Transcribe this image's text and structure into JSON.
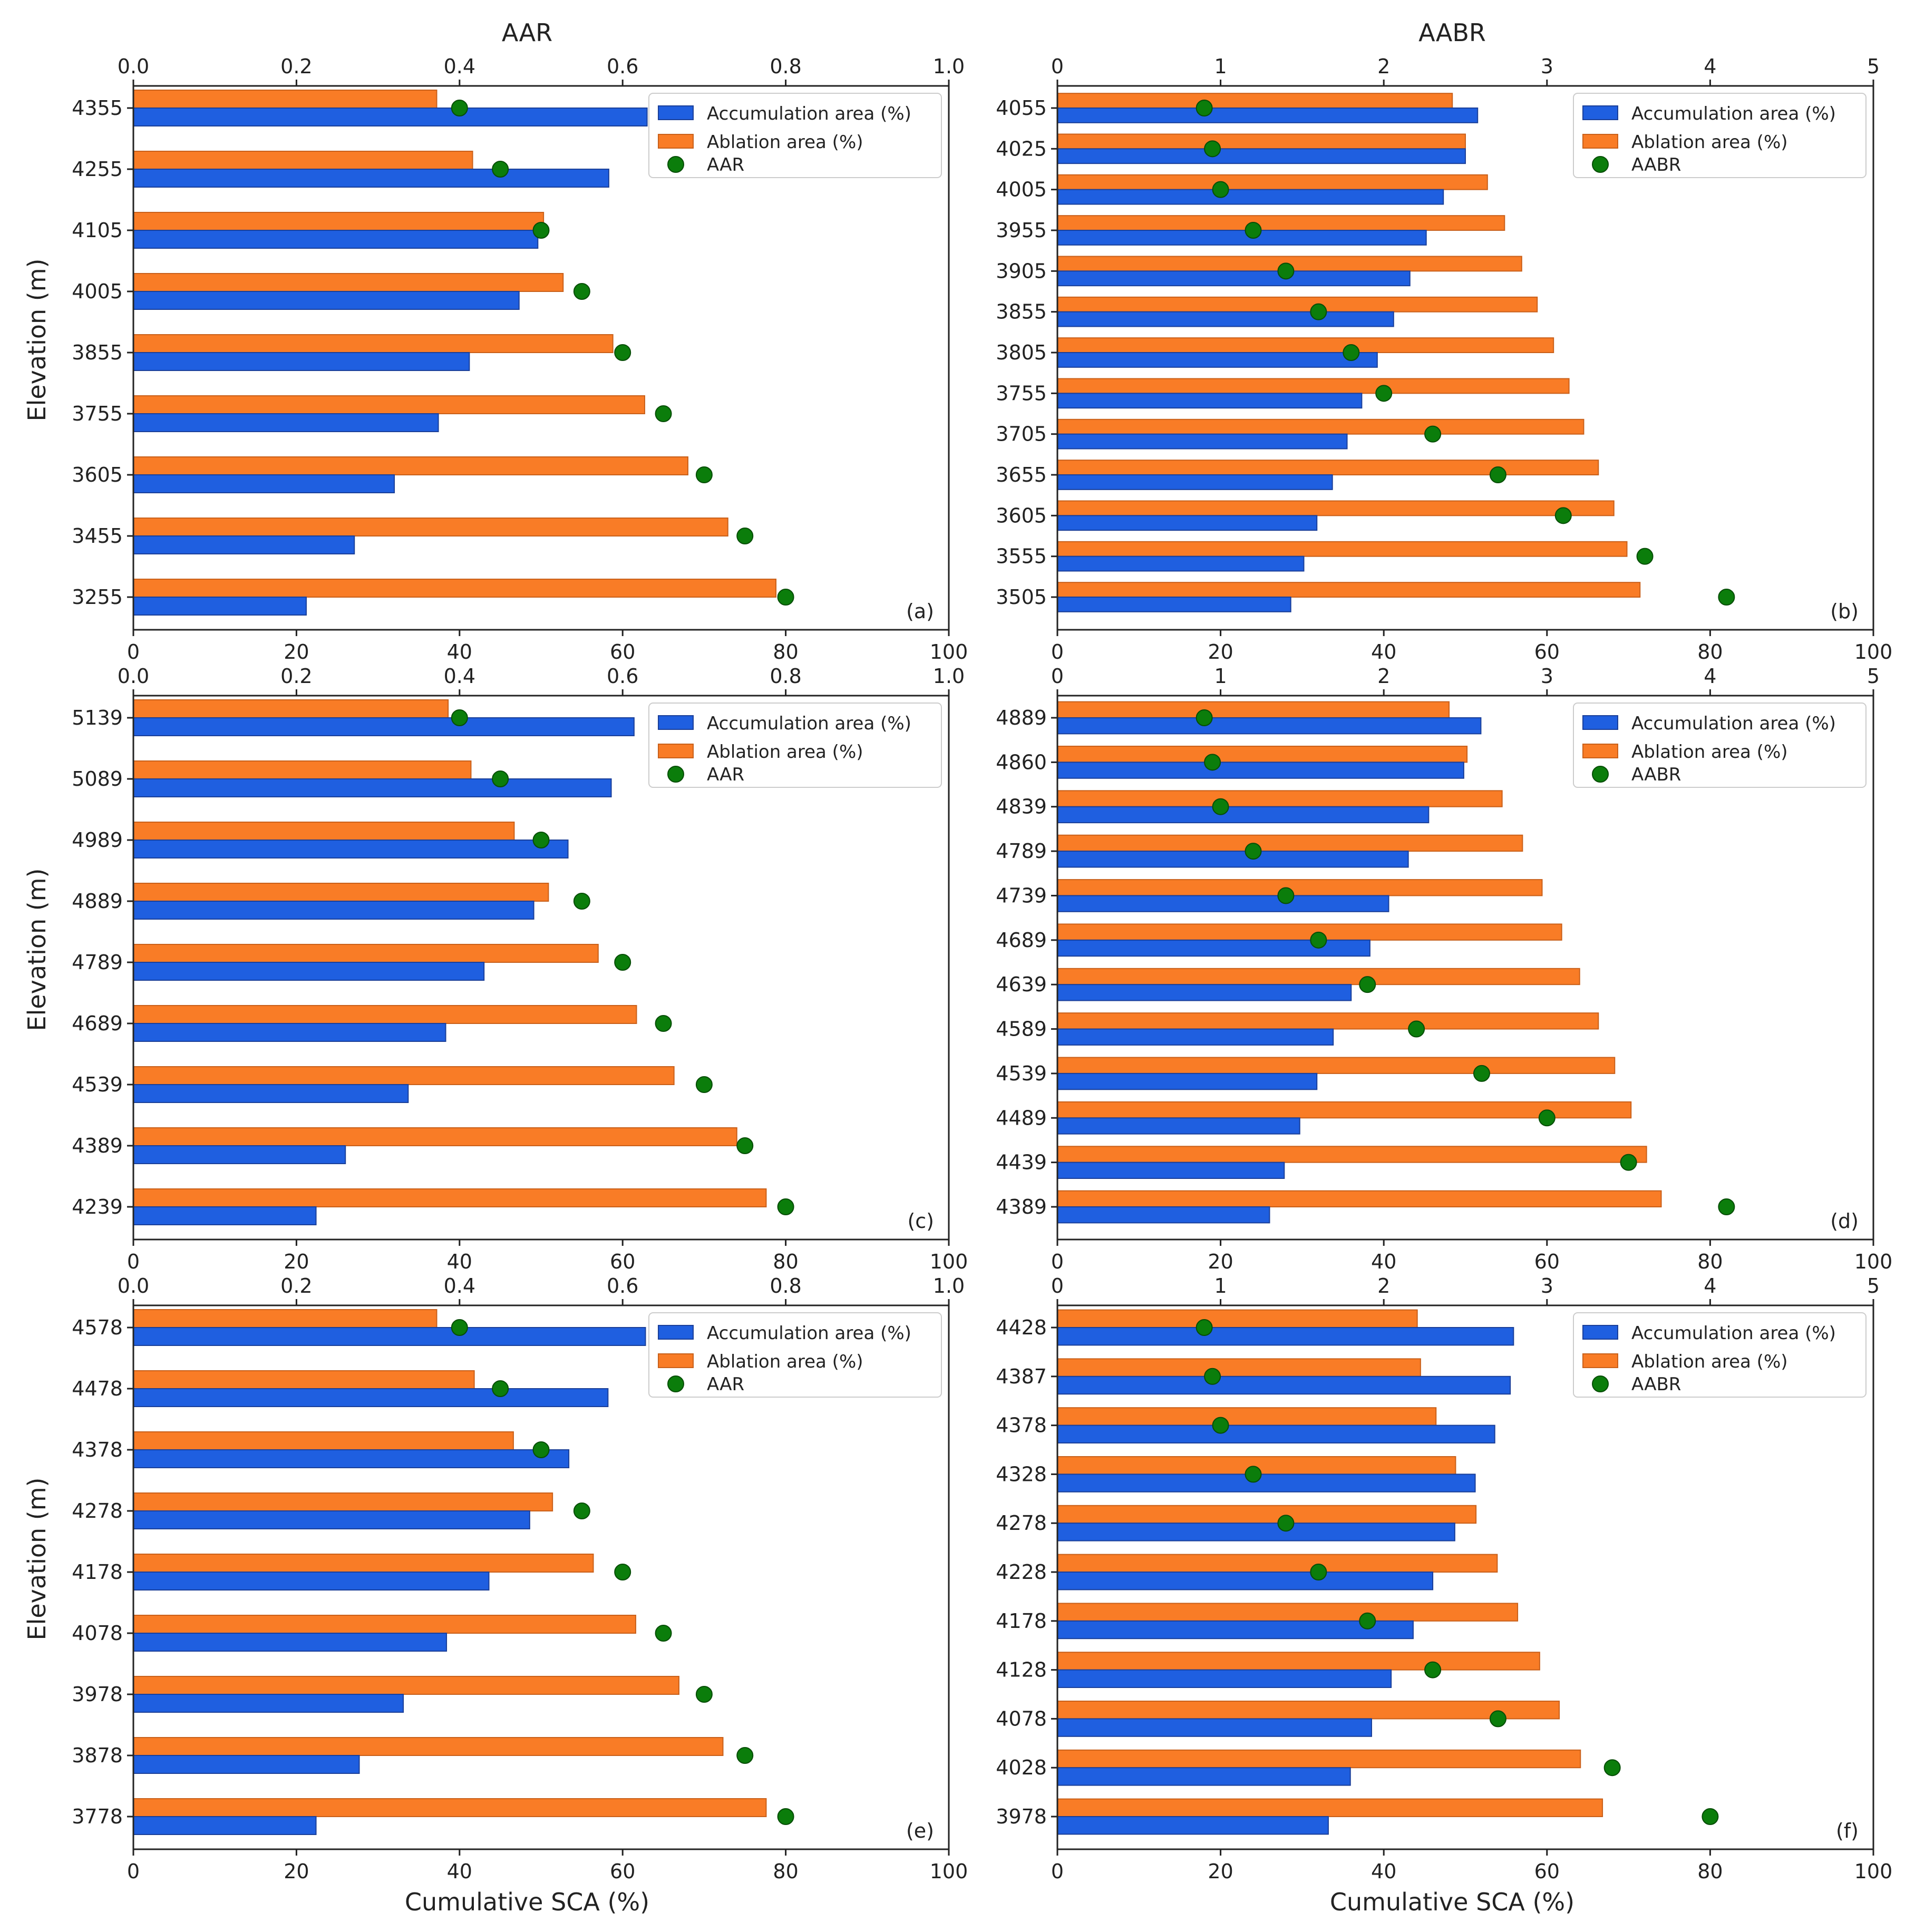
{
  "figure": {
    "xlabel": "Cumulative SCA (%)",
    "ylabel": "Elevation (m)",
    "colors": {
      "accumulation": "#1f5fe0",
      "ablation": "#f97c26",
      "marker": "#0b7d0b",
      "edge": "#1a3f99",
      "edge_orange": "#c9601a"
    }
  },
  "chart_data": [
    {
      "panel": "(a)",
      "type": "bar",
      "top_axis_label": "AAR",
      "top_ticks": [
        "0.0",
        "0.2",
        "0.4",
        "0.6",
        "0.8",
        "1.0"
      ],
      "top_max": 1.0,
      "bottom_ticks": [
        "0",
        "20",
        "40",
        "60",
        "80",
        "100"
      ],
      "xlim": [
        0,
        100
      ],
      "legend": [
        "Accumulation area (%)",
        "Ablation area (%)",
        "AAR"
      ],
      "categories": [
        "4355",
        "4255",
        "4105",
        "4005",
        "3855",
        "3755",
        "3605",
        "3455",
        "3255"
      ],
      "series": [
        {
          "name": "Accumulation area (%)",
          "values": [
            63,
            58.3,
            49.6,
            47.3,
            41.2,
            37.4,
            32,
            27.1,
            21.2
          ]
        },
        {
          "name": "Ablation area (%)",
          "values": [
            37.2,
            41.6,
            50.3,
            52.7,
            58.8,
            62.7,
            68,
            72.9,
            78.8
          ]
        },
        {
          "name": "AAR",
          "values": [
            0.4,
            0.45,
            0.5,
            0.55,
            0.6,
            0.65,
            0.7,
            0.75,
            0.8
          ]
        }
      ]
    },
    {
      "panel": "(b)",
      "type": "bar",
      "top_axis_label": "AABR",
      "top_ticks": [
        "0",
        "1",
        "2",
        "3",
        "4",
        "5"
      ],
      "top_max": 5,
      "bottom_ticks": [
        "0",
        "20",
        "40",
        "60",
        "80",
        "100"
      ],
      "xlim": [
        0,
        100
      ],
      "legend": [
        "Accumulation area (%)",
        "Ablation area (%)",
        "AABR"
      ],
      "categories": [
        "4055",
        "4025",
        "4005",
        "3955",
        "3905",
        "3855",
        "3805",
        "3755",
        "3705",
        "3655",
        "3605",
        "3555",
        "3505"
      ],
      "series": [
        {
          "name": "Accumulation area (%)",
          "values": [
            51.5,
            50,
            47.3,
            45.2,
            43.2,
            41.2,
            39.2,
            37.3,
            35.5,
            33.7,
            31.8,
            30.2,
            28.6
          ]
        },
        {
          "name": "Ablation area (%)",
          "values": [
            48.4,
            50,
            52.7,
            54.8,
            56.9,
            58.8,
            60.8,
            62.7,
            64.5,
            66.3,
            68.2,
            69.8,
            71.4
          ]
        },
        {
          "name": "AABR",
          "values": [
            0.9,
            0.95,
            1.0,
            1.2,
            1.4,
            1.6,
            1.8,
            2.0,
            2.3,
            2.7,
            3.1,
            3.6,
            4.1
          ]
        }
      ]
    },
    {
      "panel": "(c)",
      "type": "bar",
      "top_axis_label": "",
      "top_ticks": [
        "0.0",
        "0.2",
        "0.4",
        "0.6",
        "0.8",
        "1.0"
      ],
      "top_max": 1.0,
      "bottom_ticks": [
        "0",
        "20",
        "40",
        "60",
        "80",
        "100"
      ],
      "xlim": [
        0,
        100
      ],
      "legend": [
        "Accumulation area (%)",
        "Ablation area (%)",
        "AAR"
      ],
      "categories": [
        "5139",
        "5089",
        "4989",
        "4889",
        "4789",
        "4689",
        "4539",
        "4389",
        "4239"
      ],
      "series": [
        {
          "name": "Accumulation area (%)",
          "values": [
            61.4,
            58.6,
            53.3,
            49.1,
            43,
            38.3,
            33.7,
            26,
            22.4
          ]
        },
        {
          "name": "Ablation area (%)",
          "values": [
            38.6,
            41.4,
            46.7,
            50.9,
            57,
            61.7,
            66.3,
            74,
            77.6
          ]
        },
        {
          "name": "AAR",
          "values": [
            0.4,
            0.45,
            0.5,
            0.55,
            0.6,
            0.65,
            0.7,
            0.75,
            0.8
          ]
        }
      ]
    },
    {
      "panel": "(d)",
      "type": "bar",
      "top_axis_label": "",
      "top_ticks": [
        "0",
        "1",
        "2",
        "3",
        "4",
        "5"
      ],
      "top_max": 5,
      "bottom_ticks": [
        "0",
        "20",
        "40",
        "60",
        "80",
        "100"
      ],
      "xlim": [
        0,
        100
      ],
      "legend": [
        "Accumulation area (%)",
        "Ablation area (%)",
        "AABR"
      ],
      "categories": [
        "4889",
        "4860",
        "4839",
        "4789",
        "4739",
        "4689",
        "4639",
        "4589",
        "4539",
        "4489",
        "4439",
        "4389"
      ],
      "series": [
        {
          "name": "Accumulation area (%)",
          "values": [
            51.9,
            49.8,
            45.5,
            43,
            40.6,
            38.3,
            36,
            33.8,
            31.8,
            29.7,
            27.8,
            26
          ]
        },
        {
          "name": "Ablation area (%)",
          "values": [
            48,
            50.2,
            54.5,
            57,
            59.4,
            61.8,
            64,
            66.3,
            68.3,
            70.3,
            72.2,
            74
          ]
        },
        {
          "name": "AABR",
          "values": [
            0.9,
            0.95,
            1.0,
            1.2,
            1.4,
            1.6,
            1.9,
            2.2,
            2.6,
            3.0,
            3.5,
            4.1
          ]
        }
      ]
    },
    {
      "panel": "(e)",
      "type": "bar",
      "top_axis_label": "",
      "top_ticks": [
        "0.0",
        "0.2",
        "0.4",
        "0.6",
        "0.8",
        "1.0"
      ],
      "top_max": 1.0,
      "bottom_ticks": [
        "0",
        "20",
        "40",
        "60",
        "80",
        "100"
      ],
      "xlim": [
        0,
        100
      ],
      "legend": [
        "Accumulation area (%)",
        "Ablation area (%)",
        "AAR"
      ],
      "categories": [
        "4578",
        "4478",
        "4378",
        "4278",
        "4178",
        "4078",
        "3978",
        "3878",
        "3778"
      ],
      "series": [
        {
          "name": "Accumulation area (%)",
          "values": [
            62.8,
            58.2,
            53.4,
            48.6,
            43.6,
            38.4,
            33.1,
            27.7,
            22.4
          ]
        },
        {
          "name": "Ablation area (%)",
          "values": [
            37.2,
            41.8,
            46.6,
            51.4,
            56.4,
            61.6,
            66.9,
            72.3,
            77.6
          ]
        },
        {
          "name": "AAR",
          "values": [
            0.4,
            0.45,
            0.5,
            0.55,
            0.6,
            0.65,
            0.7,
            0.75,
            0.8
          ]
        }
      ]
    },
    {
      "panel": "(f)",
      "type": "bar",
      "top_axis_label": "",
      "top_ticks": [
        "0",
        "1",
        "2",
        "3",
        "4",
        "5"
      ],
      "top_max": 5,
      "bottom_ticks": [
        "0",
        "20",
        "40",
        "60",
        "80",
        "100"
      ],
      "xlim": [
        0,
        100
      ],
      "legend": [
        "Accumulation area (%)",
        "Ablation area (%)",
        "AABR"
      ],
      "categories": [
        "4428",
        "4387",
        "4378",
        "4328",
        "4278",
        "4228",
        "4178",
        "4128",
        "4078",
        "4028",
        "3978"
      ],
      "series": [
        {
          "name": "Accumulation area (%)",
          "values": [
            55.9,
            55.5,
            53.6,
            51.2,
            48.7,
            46,
            43.6,
            40.9,
            38.5,
            35.9,
            33.2
          ]
        },
        {
          "name": "Ablation area (%)",
          "values": [
            44.1,
            44.5,
            46.4,
            48.8,
            51.3,
            53.9,
            56.4,
            59.1,
            61.5,
            64.1,
            66.8
          ]
        },
        {
          "name": "AABR",
          "values": [
            0.9,
            0.95,
            1.0,
            1.2,
            1.4,
            1.6,
            1.9,
            2.3,
            2.7,
            3.4,
            4.0
          ]
        }
      ]
    }
  ]
}
